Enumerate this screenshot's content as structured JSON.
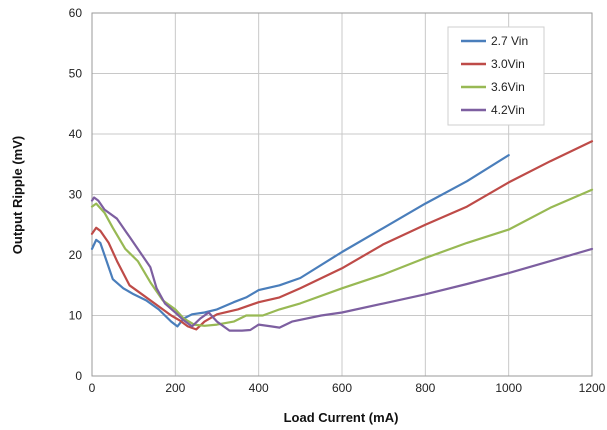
{
  "chart_data": {
    "type": "line",
    "title": "",
    "xlabel": "Load Current (mA)",
    "ylabel": "Output Ripple (mV)",
    "xlim": [
      0,
      1200
    ],
    "ylim": [
      0,
      60
    ],
    "xticks": [
      0,
      200,
      400,
      600,
      800,
      1000,
      1200
    ],
    "yticks": [
      0,
      10,
      20,
      30,
      40,
      50,
      60
    ],
    "grid": true,
    "legend_position": "top-right",
    "series": [
      {
        "name": "2.7 Vin",
        "color": "#4a7ebb",
        "points": [
          [
            0,
            21
          ],
          [
            10,
            22.5
          ],
          [
            20,
            22
          ],
          [
            35,
            19
          ],
          [
            50,
            16
          ],
          [
            75,
            14.5
          ],
          [
            100,
            13.5
          ],
          [
            130,
            12.5
          ],
          [
            160,
            11
          ],
          [
            190,
            9
          ],
          [
            205,
            8.2
          ],
          [
            220,
            9.5
          ],
          [
            240,
            10.2
          ],
          [
            270,
            10.5
          ],
          [
            300,
            11
          ],
          [
            340,
            12.2
          ],
          [
            370,
            13
          ],
          [
            400,
            14.2
          ],
          [
            450,
            15
          ],
          [
            500,
            16.2
          ],
          [
            600,
            20.5
          ],
          [
            700,
            24.5
          ],
          [
            800,
            28.5
          ],
          [
            900,
            32.2
          ],
          [
            1000,
            36.5
          ]
        ]
      },
      {
        "name": "3.0Vin",
        "color": "#be4b48",
        "points": [
          [
            0,
            23.5
          ],
          [
            10,
            24.5
          ],
          [
            20,
            24
          ],
          [
            40,
            22
          ],
          [
            60,
            19
          ],
          [
            90,
            15
          ],
          [
            120,
            13.5
          ],
          [
            160,
            11.5
          ],
          [
            190,
            10
          ],
          [
            210,
            9.2
          ],
          [
            230,
            8.2
          ],
          [
            250,
            7.7
          ],
          [
            270,
            9
          ],
          [
            300,
            10.2
          ],
          [
            350,
            11
          ],
          [
            400,
            12.2
          ],
          [
            450,
            13
          ],
          [
            500,
            14.5
          ],
          [
            600,
            17.8
          ],
          [
            700,
            21.8
          ],
          [
            800,
            25
          ],
          [
            900,
            28
          ],
          [
            1000,
            32
          ],
          [
            1100,
            35.5
          ],
          [
            1200,
            38.8
          ]
        ]
      },
      {
        "name": "3.6Vin",
        "color": "#98b954",
        "points": [
          [
            0,
            28
          ],
          [
            10,
            28.5
          ],
          [
            30,
            27
          ],
          [
            50,
            24.5
          ],
          [
            80,
            21
          ],
          [
            110,
            19
          ],
          [
            140,
            15.5
          ],
          [
            170,
            12.5
          ],
          [
            200,
            11
          ],
          [
            220,
            9.5
          ],
          [
            245,
            8.5
          ],
          [
            270,
            8.3
          ],
          [
            300,
            8.5
          ],
          [
            340,
            9
          ],
          [
            370,
            10
          ],
          [
            410,
            10
          ],
          [
            450,
            11
          ],
          [
            500,
            12
          ],
          [
            600,
            14.5
          ],
          [
            700,
            16.8
          ],
          [
            800,
            19.5
          ],
          [
            900,
            22
          ],
          [
            1000,
            24.2
          ],
          [
            1100,
            27.8
          ],
          [
            1200,
            30.8
          ]
        ]
      },
      {
        "name": "4.2Vin",
        "color": "#7d5fa0",
        "points": [
          [
            0,
            29
          ],
          [
            5,
            29.5
          ],
          [
            15,
            29
          ],
          [
            30,
            27.5
          ],
          [
            60,
            26
          ],
          [
            90,
            23
          ],
          [
            120,
            20
          ],
          [
            140,
            18
          ],
          [
            155,
            14.5
          ],
          [
            175,
            12
          ],
          [
            200,
            10.5
          ],
          [
            220,
            9.2
          ],
          [
            240,
            8.2
          ],
          [
            260,
            9.5
          ],
          [
            280,
            10.5
          ],
          [
            300,
            9
          ],
          [
            330,
            7.5
          ],
          [
            360,
            7.5
          ],
          [
            380,
            7.6
          ],
          [
            400,
            8.5
          ],
          [
            430,
            8.2
          ],
          [
            450,
            8
          ],
          [
            480,
            9
          ],
          [
            550,
            10
          ],
          [
            600,
            10.5
          ],
          [
            700,
            12
          ],
          [
            800,
            13.5
          ],
          [
            900,
            15.2
          ],
          [
            1000,
            17
          ],
          [
            1100,
            19
          ],
          [
            1200,
            21
          ]
        ]
      }
    ]
  }
}
